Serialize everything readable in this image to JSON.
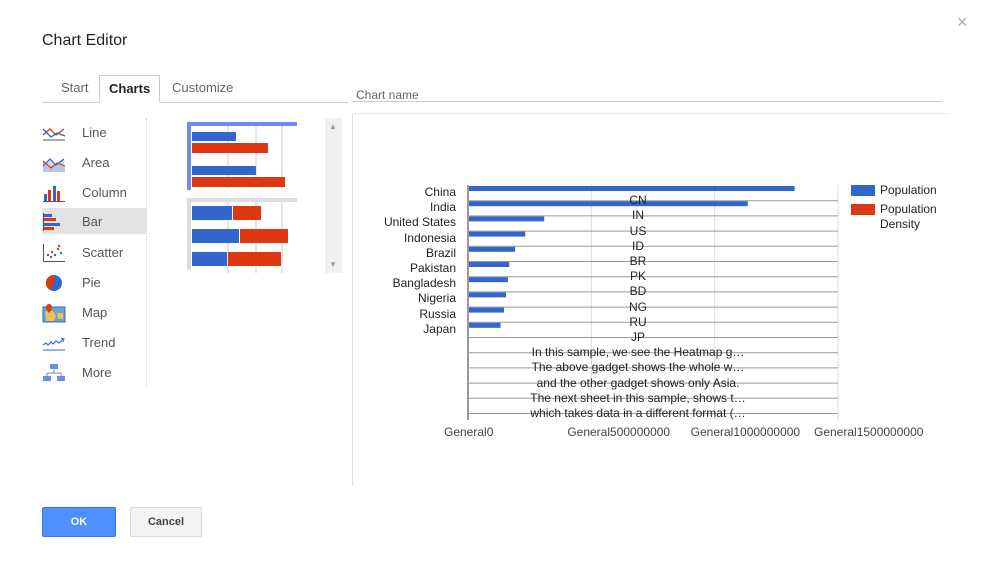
{
  "dialog": {
    "title": "Chart Editor",
    "close_icon": "×"
  },
  "tabs": [
    {
      "label": "Start",
      "active": false
    },
    {
      "label": "Charts",
      "active": true
    },
    {
      "label": "Customize",
      "active": false
    }
  ],
  "chart_name": {
    "label": "Chart name",
    "value": ""
  },
  "sidebar": {
    "items": [
      {
        "label": "Line",
        "icon": "line-chart-icon"
      },
      {
        "label": "Area",
        "icon": "area-chart-icon"
      },
      {
        "label": "Column",
        "icon": "column-chart-icon"
      },
      {
        "label": "Bar",
        "icon": "bar-chart-icon",
        "active": true
      },
      {
        "label": "Scatter",
        "icon": "scatter-chart-icon"
      },
      {
        "label": "Pie",
        "icon": "pie-chart-icon"
      },
      {
        "label": "Map",
        "icon": "map-chart-icon"
      },
      {
        "label": "Trend",
        "icon": "trend-chart-icon"
      },
      {
        "label": "More",
        "icon": "more-charts-icon"
      }
    ]
  },
  "thumbnails": [
    {
      "name": "bar-grouped",
      "selected": true
    },
    {
      "name": "bar-stacked",
      "selected": false
    }
  ],
  "colors": {
    "series1": "#3366cc",
    "series2": "#dc3912",
    "primary_button": "#4d90fe",
    "selected_thumb": "#6d8ee0"
  },
  "buttons": {
    "ok": "OK",
    "cancel": "Cancel"
  },
  "chart_data": {
    "type": "bar",
    "orientation": "horizontal",
    "categories": [
      "China",
      "India",
      "United States",
      "Indonesia",
      "Brazil",
      "Pakistan",
      "Bangladesh",
      "Nigeria",
      "Russia",
      "Japan"
    ],
    "row_labels": [
      "CN",
      "IN",
      "US",
      "ID",
      "BR",
      "PK",
      "BD",
      "NG",
      "RU",
      "JP",
      "In this sample, we see the Heatmap g…",
      "The above gadget shows the whole w…",
      "and the other gadget shows only Asia.",
      "The next sheet in this sample, shows t…",
      "which takes data in a different format (…"
    ],
    "series": [
      {
        "name": "Population",
        "color": "#3366cc",
        "values": [
          1320000000,
          1130000000,
          305000000,
          228000000,
          187000000,
          163000000,
          158000000,
          150000000,
          142000000,
          128000000
        ]
      },
      {
        "name": "Population Density",
        "color": "#dc3912",
        "values": [
          0,
          0,
          0,
          0,
          0,
          0,
          0,
          0,
          0,
          0
        ]
      }
    ],
    "x_ticks": [
      "General0",
      "General500000000",
      "General1000000000",
      "General1500000000"
    ],
    "xlim": [
      0,
      1500000000
    ],
    "legend": [
      "Population",
      "Population Density"
    ],
    "legend_position": "right",
    "grid": true,
    "title": "",
    "xlabel": "",
    "ylabel": ""
  }
}
